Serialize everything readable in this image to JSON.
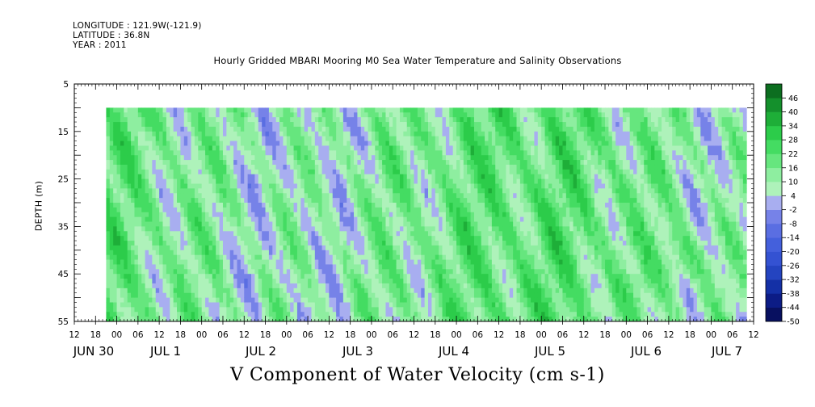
{
  "header": {
    "longitude": "LONGITUDE : 121.9W(-121.9)",
    "latitude": "LATITUDE : 36.8N",
    "year": "YEAR : 2011"
  },
  "chart_data": {
    "type": "heatmap",
    "title": "Hourly Gridded MBARI Mooring M0 Sea Water Temperature and Salinity Observations",
    "variable_label": "V Component of Water Velocity (cm s-1)",
    "ylabel": "DEPTH (m)",
    "y_axis": {
      "range": [
        5,
        55
      ],
      "inverted": true,
      "tick_labels": [
        "5",
        "15",
        "25",
        "35",
        "45",
        "55"
      ],
      "data_depth_range": [
        10,
        55
      ]
    },
    "x_axis": {
      "hour_tick_labels": [
        "12",
        "18",
        "00",
        "06",
        "12",
        "18",
        "00",
        "06",
        "12",
        "18",
        "00",
        "06",
        "12",
        "18",
        "00",
        "06",
        "12",
        "18",
        "00",
        "06",
        "12",
        "18",
        "00",
        "06",
        "12",
        "18",
        "00",
        "06",
        "12",
        "18",
        "00",
        "06",
        "12"
      ],
      "day_labels": [
        "JUN 30",
        "JUL 1",
        "JUL 2",
        "JUL 3",
        "JUL 4",
        "JUL 5",
        "JUL 6",
        "JUL 7"
      ],
      "range_hours_from_jun30_00": [
        12,
        204
      ],
      "data_range_hours_from_jun30_00": [
        21,
        202
      ]
    },
    "colorbar": {
      "levels": [
        "46",
        "40",
        "34",
        "28",
        "22",
        "16",
        "10",
        "4",
        "-2",
        "-8",
        "-14",
        "-20",
        "-26",
        "-32",
        "-38",
        "-44",
        "-50"
      ],
      "range": [
        -50,
        52
      ]
    },
    "colors": {
      "strong_positive": "#0a5a1e",
      "positive": "#22c83c",
      "weak_positive": "#8ef2a0",
      "weak_negative": "#aab0f2",
      "negative": "#5a68e0",
      "strong_negative": "#0a1470"
    }
  }
}
